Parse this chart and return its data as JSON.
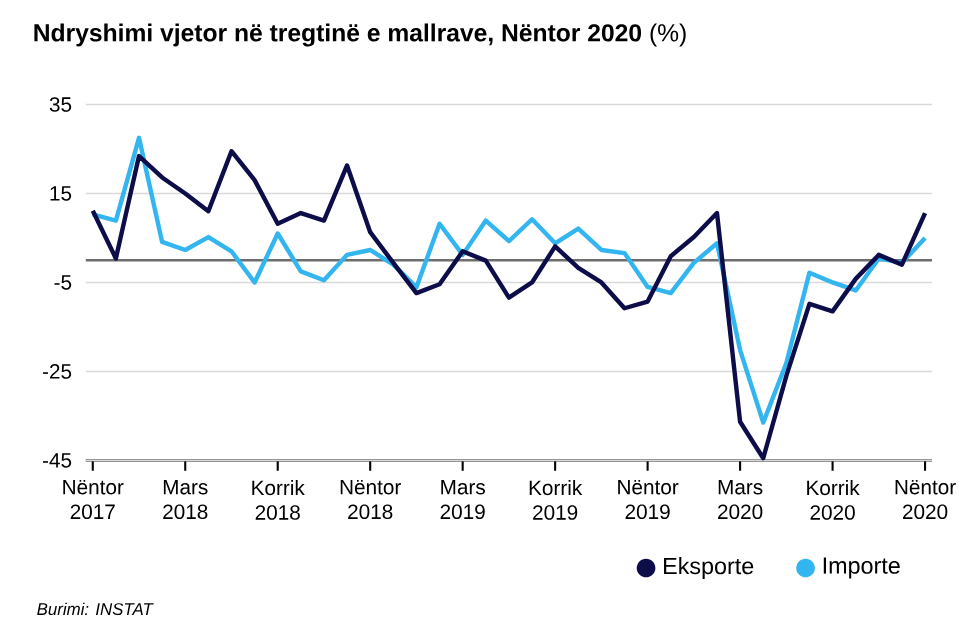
{
  "chart_data": {
    "type": "line",
    "title": "**Ndryshimi vjetor në tregtinë e mallrave, Nëntor 2020** (%)",
    "categories": [
      "Nëntor 2017",
      null,
      null,
      null,
      "Mars 2018",
      null,
      null,
      null,
      "Korrik 2018",
      null,
      null,
      null,
      "Nëntor 2018",
      null,
      null,
      null,
      "Mars 2019",
      null,
      null,
      null,
      "Korrik 2019",
      null,
      null,
      null,
      "Nëntor 2019",
      null,
      null,
      null,
      "Mars 2020",
      null,
      null,
      null,
      "Korrik 2020",
      null,
      null,
      null,
      "Nëntor 2020"
    ],
    "series": [
      {
        "name": "Eksporte",
        "color": "#0d0d4a",
        "values": [
          11.1,
          0.4,
          23.4,
          18.6,
          15,
          11,
          24.5,
          18,
          8.2,
          10.6,
          8.9,
          21.3,
          6.3,
          -0.6,
          -7.4,
          -5.4,
          2,
          -0.1,
          -8.4,
          -5,
          3.1,
          -1.7,
          -5,
          -10.8,
          -9.3,
          0.9,
          5.2,
          10.6,
          -36.3,
          -44.5,
          -26,
          -9.8,
          -11.5,
          -4.2,
          1.2,
          -1,
          10.6
        ]
      },
      {
        "name": "Importe",
        "color": "#33b5f0",
        "values": [
          10.3,
          8.9,
          27.5,
          4.1,
          2.3,
          5.2,
          2,
          -5,
          6,
          -2.5,
          -4.5,
          1.2,
          2.3,
          -1,
          -6.1,
          8.2,
          1.2,
          8.9,
          4.3,
          9.2,
          3.8,
          7.1,
          2.3,
          1.6,
          -6,
          -7.4,
          -0.6,
          3.8,
          -20.2,
          -36.5,
          -23.1,
          -2.8,
          -5,
          -6.8,
          0.4,
          -0.6,
          5
        ]
      }
    ],
    "ylim": [
      -45,
      35
    ],
    "yticks": [
      -45,
      -25,
      -5,
      15,
      35
    ],
    "grid": "y",
    "ref_lines": [
      {
        "axis": "y",
        "value": 0,
        "color": "#6e6e6e"
      }
    ],
    "legend": "bottom right",
    "marker": "none",
    "line_style": "solid",
    "annotations": [
      "Burimi: INSTAT"
    ]
  }
}
